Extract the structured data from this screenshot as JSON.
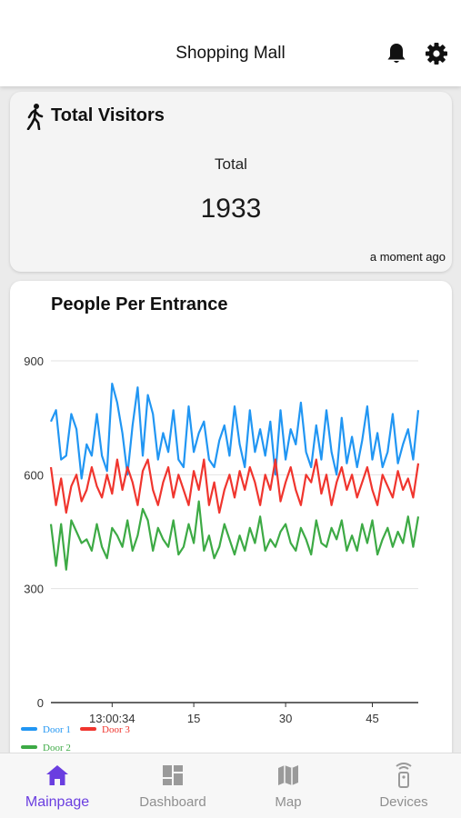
{
  "header": {
    "title": "Shopping Mall",
    "icons": [
      "bell-icon",
      "gear-icon"
    ]
  },
  "visitors_card": {
    "title": "Total Visitors",
    "icon": "walking-person-icon",
    "total_label": "Total",
    "total_value": "1933",
    "timestamp": "a moment ago"
  },
  "entrance_card": {
    "title": "People Per Entrance"
  },
  "chart_data": {
    "type": "line",
    "ylim": [
      0,
      900
    ],
    "y_ticks": [
      "0",
      "300",
      "600",
      "900"
    ],
    "x_ticks": [
      {
        "label": "13:00:34",
        "index": 12
      },
      {
        "label": "15",
        "index": 28
      },
      {
        "label": "30",
        "index": 46
      },
      {
        "label": "45",
        "index": 63
      }
    ],
    "grid": true,
    "legend_position": "bottom-left",
    "series": [
      {
        "name": "Door 1",
        "color": "#2196f3",
        "values": [
          740,
          770,
          640,
          650,
          760,
          720,
          590,
          680,
          650,
          760,
          650,
          610,
          840,
          790,
          710,
          600,
          730,
          830,
          650,
          810,
          760,
          640,
          710,
          660,
          770,
          640,
          620,
          780,
          660,
          710,
          740,
          640,
          620,
          690,
          730,
          650,
          780,
          680,
          620,
          770,
          660,
          720,
          650,
          740,
          600,
          770,
          640,
          720,
          680,
          790,
          660,
          620,
          730,
          640,
          770,
          660,
          600,
          750,
          630,
          700,
          620,
          690,
          780,
          640,
          710,
          620,
          660,
          760,
          630,
          680,
          720,
          640,
          770
        ]
      },
      {
        "name": "Door 3",
        "color": "#f0352e",
        "values": [
          620,
          520,
          590,
          500,
          570,
          600,
          530,
          560,
          620,
          570,
          540,
          600,
          550,
          640,
          560,
          620,
          580,
          520,
          610,
          640,
          560,
          520,
          580,
          620,
          540,
          600,
          560,
          520,
          610,
          560,
          640,
          520,
          580,
          500,
          560,
          600,
          540,
          610,
          560,
          620,
          580,
          520,
          600,
          560,
          640,
          530,
          580,
          620,
          560,
          520,
          600,
          580,
          640,
          550,
          600,
          520,
          580,
          620,
          560,
          600,
          540,
          580,
          620,
          560,
          520,
          600,
          570,
          540,
          610,
          560,
          590,
          540,
          630
        ]
      },
      {
        "name": "Door 2",
        "color": "#3daa45",
        "values": [
          470,
          360,
          470,
          350,
          480,
          450,
          420,
          430,
          400,
          470,
          410,
          380,
          460,
          440,
          410,
          480,
          400,
          440,
          510,
          480,
          400,
          460,
          430,
          410,
          480,
          390,
          410,
          470,
          420,
          530,
          400,
          440,
          380,
          410,
          470,
          430,
          390,
          440,
          400,
          460,
          420,
          490,
          400,
          430,
          410,
          450,
          470,
          420,
          400,
          460,
          430,
          390,
          480,
          420,
          410,
          460,
          430,
          480,
          400,
          440,
          400,
          470,
          420,
          480,
          390,
          430,
          460,
          410,
          450,
          420,
          490,
          410,
          490
        ]
      }
    ]
  },
  "tabbar": {
    "tabs": [
      {
        "label": "Mainpage",
        "icon": "home-icon",
        "active": true
      },
      {
        "label": "Dashboard",
        "icon": "dashboard-icon",
        "active": false
      },
      {
        "label": "Map",
        "icon": "map-icon",
        "active": false
      },
      {
        "label": "Devices",
        "icon": "remote-device-icon",
        "active": false
      }
    ]
  }
}
